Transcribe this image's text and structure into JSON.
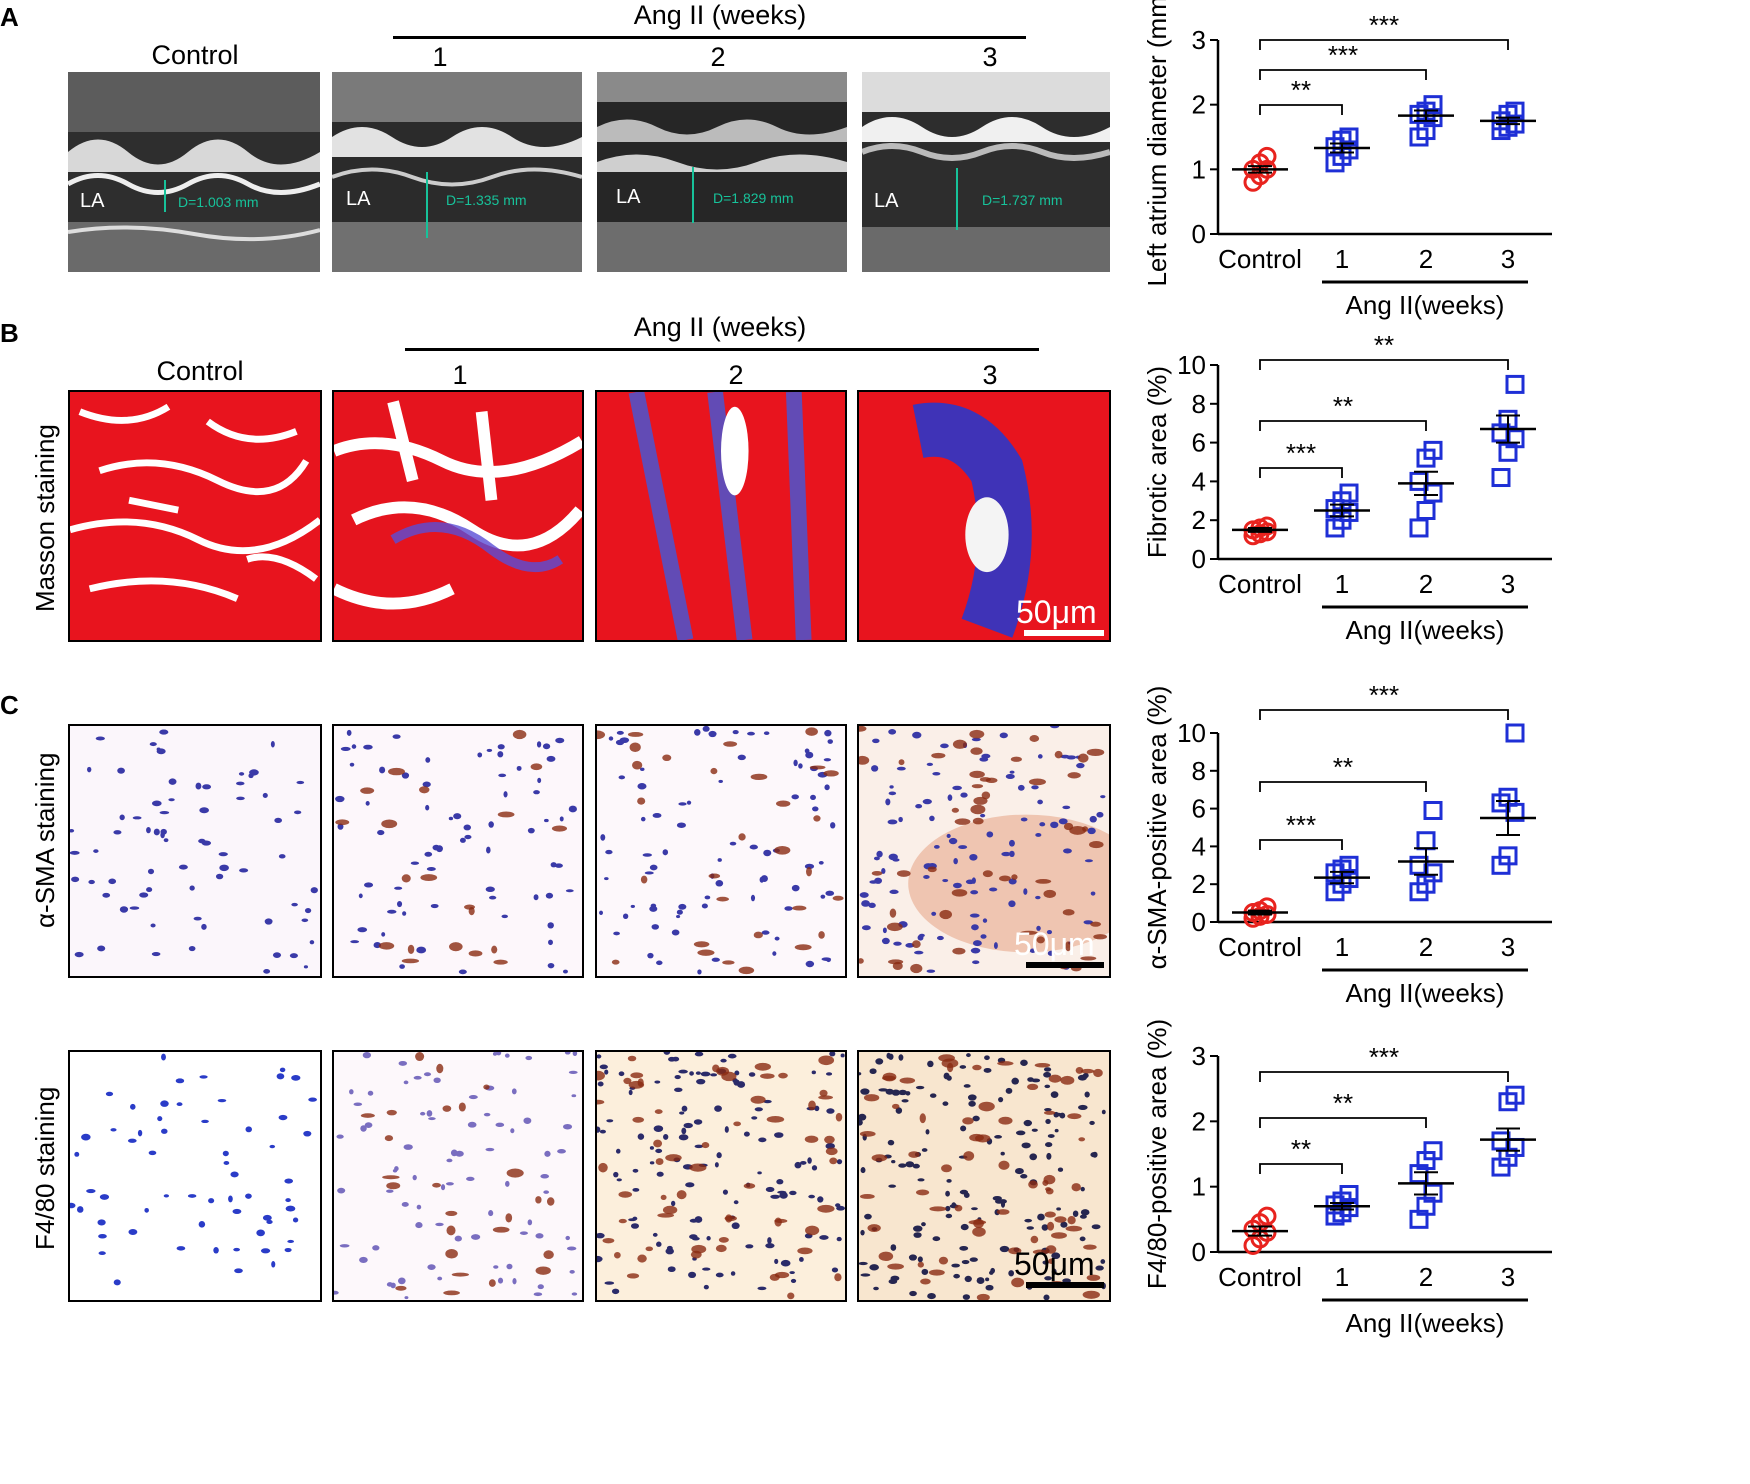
{
  "panels": {
    "A": {
      "letter": "A",
      "header": "Ang II (weeks)",
      "columns": [
        "Control",
        "1",
        "2",
        "3"
      ],
      "la_label": "LA",
      "measurements": [
        "D=1.003 mm",
        "D=1.335 mm",
        "D=1.829 mm",
        "D=1.737 mm"
      ]
    },
    "B": {
      "letter": "B",
      "header": "Ang II (weeks)",
      "columns": [
        "Control",
        "1",
        "2",
        "3"
      ],
      "row_label": "Masson staining",
      "scale_bar": "50μm"
    },
    "C": {
      "letter": "C",
      "row_labels": [
        "α-SMA staining",
        "F4/80 staining"
      ],
      "scale_bars": [
        "50μm",
        "50μm"
      ]
    }
  },
  "colors": {
    "control": "#e8231e",
    "angii": "#1e2fd6",
    "ruler": "#17c29a"
  },
  "chart_data": [
    {
      "type": "scatter",
      "panel": "A",
      "ylabel": "Left atrium diameter (mm)",
      "xgroup_label": "Ang II(weeks)",
      "categories": [
        "Control",
        "1",
        "2",
        "3"
      ],
      "ylim": [
        0,
        3
      ],
      "yticks": [
        "0",
        "1",
        "2",
        "3"
      ],
      "series": [
        {
          "category": "Control",
          "mean": 1.0,
          "sem": 0.05,
          "points": [
            0.8,
            0.9,
            1.0,
            1.0,
            1.1,
            1.2
          ]
        },
        {
          "category": "1",
          "mean": 1.33,
          "sem": 0.07,
          "points": [
            1.1,
            1.2,
            1.3,
            1.35,
            1.45,
            1.5
          ]
        },
        {
          "category": "2",
          "mean": 1.83,
          "sem": 0.08,
          "points": [
            1.5,
            1.6,
            1.8,
            1.85,
            1.9,
            2.0
          ]
        },
        {
          "category": "3",
          "mean": 1.75,
          "sem": 0.05,
          "points": [
            1.6,
            1.65,
            1.7,
            1.75,
            1.85,
            1.9
          ]
        }
      ],
      "brackets": [
        {
          "from": "Control",
          "to": "1",
          "label": "**"
        },
        {
          "from": "Control",
          "to": "2",
          "label": "***"
        },
        {
          "from": "Control",
          "to": "3",
          "label": "***"
        }
      ]
    },
    {
      "type": "scatter",
      "panel": "B",
      "ylabel": "Fibrotic area (%)",
      "xgroup_label": "Ang II(weeks)",
      "categories": [
        "Control",
        "1",
        "2",
        "3"
      ],
      "ylim": [
        0,
        10
      ],
      "yticks": [
        "0",
        "2",
        "4",
        "6",
        "8",
        "10"
      ],
      "series": [
        {
          "category": "Control",
          "mean": 1.5,
          "sem": 0.1,
          "points": [
            1.2,
            1.3,
            1.4,
            1.5,
            1.6,
            1.7
          ]
        },
        {
          "category": "1",
          "mean": 2.5,
          "sem": 0.3,
          "points": [
            1.6,
            2.0,
            2.4,
            2.6,
            3.0,
            3.4
          ]
        },
        {
          "category": "2",
          "mean": 3.9,
          "sem": 0.6,
          "points": [
            1.6,
            2.5,
            3.4,
            4.0,
            5.2,
            5.6
          ]
        },
        {
          "category": "3",
          "mean": 6.7,
          "sem": 0.7,
          "points": [
            4.2,
            5.5,
            6.2,
            6.5,
            7.2,
            9.0
          ]
        }
      ],
      "brackets": [
        {
          "from": "Control",
          "to": "1",
          "label": "***"
        },
        {
          "from": "Control",
          "to": "2",
          "label": "**"
        },
        {
          "from": "Control",
          "to": "3",
          "label": "**"
        }
      ]
    },
    {
      "type": "scatter",
      "panel": "C1",
      "ylabel": "α-SMA-positive area (%)",
      "xgroup_label": "Ang II(weeks)",
      "categories": [
        "Control",
        "1",
        "2",
        "3"
      ],
      "ylim": [
        0,
        10
      ],
      "yticks": [
        "0",
        "2",
        "4",
        "6",
        "8",
        "10"
      ],
      "series": [
        {
          "category": "Control",
          "mean": 0.5,
          "sem": 0.1,
          "points": [
            0.2,
            0.3,
            0.4,
            0.5,
            0.6,
            0.8
          ]
        },
        {
          "category": "1",
          "mean": 2.35,
          "sem": 0.3,
          "points": [
            1.6,
            2.0,
            2.3,
            2.6,
            2.8,
            3.0
          ]
        },
        {
          "category": "2",
          "mean": 3.2,
          "sem": 0.7,
          "points": [
            1.6,
            2.0,
            2.6,
            3.0,
            4.3,
            5.9
          ]
        },
        {
          "category": "3",
          "mean": 5.5,
          "sem": 0.9,
          "points": [
            3.0,
            3.5,
            5.8,
            6.3,
            6.6,
            10.0
          ]
        }
      ],
      "brackets": [
        {
          "from": "Control",
          "to": "1",
          "label": "***"
        },
        {
          "from": "Control",
          "to": "2",
          "label": "**"
        },
        {
          "from": "Control",
          "to": "3",
          "label": "***"
        }
      ]
    },
    {
      "type": "scatter",
      "panel": "C2",
      "ylabel": "F4/80-positive area (%)",
      "xgroup_label": "Ang II(weeks)",
      "categories": [
        "Control",
        "1",
        "2",
        "3"
      ],
      "ylim": [
        0,
        3
      ],
      "yticks": [
        "0",
        "1",
        "2",
        "3"
      ],
      "series": [
        {
          "category": "Control",
          "mean": 0.32,
          "sem": 0.07,
          "points": [
            0.1,
            0.2,
            0.3,
            0.35,
            0.45,
            0.55
          ]
        },
        {
          "category": "1",
          "mean": 0.7,
          "sem": 0.05,
          "points": [
            0.55,
            0.6,
            0.68,
            0.72,
            0.78,
            0.88
          ]
        },
        {
          "category": "2",
          "mean": 1.05,
          "sem": 0.17,
          "points": [
            0.5,
            0.7,
            0.9,
            1.2,
            1.4,
            1.55
          ]
        },
        {
          "category": "3",
          "mean": 1.72,
          "sem": 0.17,
          "points": [
            1.3,
            1.45,
            1.6,
            1.7,
            2.3,
            2.4
          ]
        }
      ],
      "brackets": [
        {
          "from": "Control",
          "to": "1",
          "label": "**"
        },
        {
          "from": "Control",
          "to": "2",
          "label": "**"
        },
        {
          "from": "Control",
          "to": "3",
          "label": "***"
        }
      ]
    }
  ]
}
